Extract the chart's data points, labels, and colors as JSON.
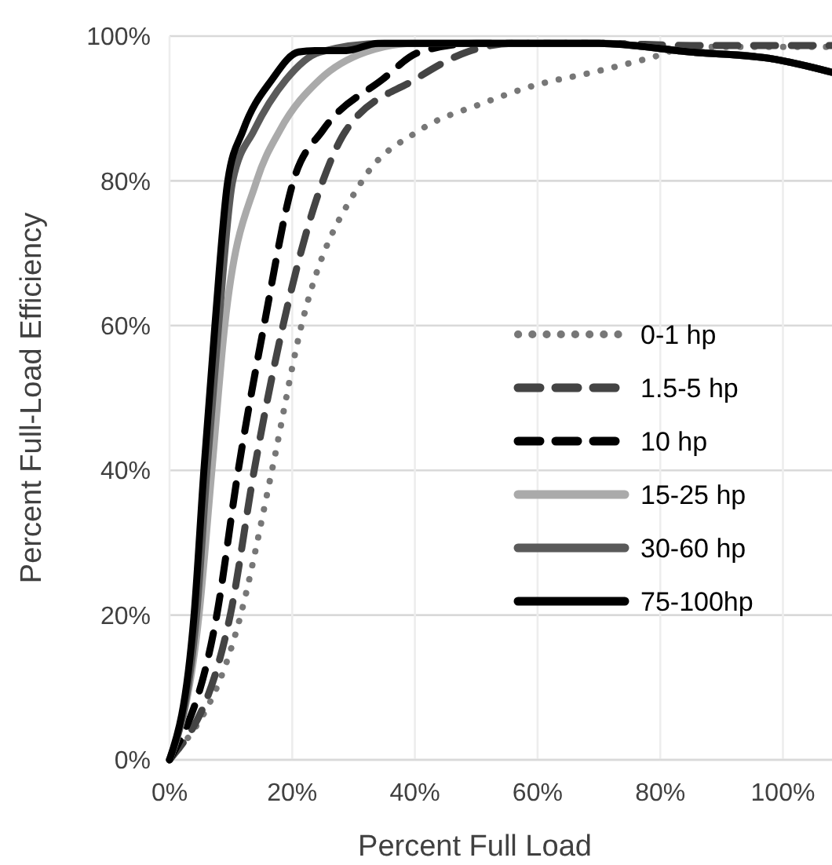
{
  "chart_data": {
    "type": "line",
    "xlabel": "Percent Full Load",
    "ylabel": "Percent Full-Load Efficiency",
    "xlim": [
      0,
      108
    ],
    "ylim": [
      0,
      100
    ],
    "xticks": [
      {
        "value": 0,
        "label": "0%"
      },
      {
        "value": 20,
        "label": "20%"
      },
      {
        "value": 40,
        "label": "40%"
      },
      {
        "value": 60,
        "label": "60%"
      },
      {
        "value": 80,
        "label": "80%"
      },
      {
        "value": 100,
        "label": "100%"
      }
    ],
    "yticks": [
      {
        "value": 0,
        "label": "0%"
      },
      {
        "value": 20,
        "label": "20%"
      },
      {
        "value": 40,
        "label": "40%"
      },
      {
        "value": 60,
        "label": "60%"
      },
      {
        "value": 80,
        "label": "80%"
      },
      {
        "value": 100,
        "label": "100%"
      }
    ],
    "grid": true,
    "legend": "right",
    "series": [
      {
        "name": "0-1 hp",
        "color": "#777777",
        "line_style": "dotted",
        "x": [
          0,
          11.6,
          16.7,
          21.5,
          31.4,
          40.8,
          51,
          60,
          69,
          78.4,
          85,
          95,
          108
        ],
        "values": [
          0,
          20,
          40,
          60,
          80,
          87,
          90.7,
          93.3,
          95,
          97,
          98.5,
          98.5,
          98.5
        ]
      },
      {
        "name": "1.5-5 hp",
        "color": "#444444",
        "line_style": "dashed",
        "x": [
          0,
          9.9,
          13.8,
          18.5,
          25,
          28.8,
          40,
          48.5,
          56,
          70,
          85,
          108
        ],
        "values": [
          0,
          20,
          40,
          60,
          80,
          87,
          94,
          97.8,
          99,
          99,
          98.7,
          98.7
        ]
      },
      {
        "name": "10 hp",
        "color": "#000000",
        "line_style": "dashed",
        "x": [
          0,
          7.7,
          11.2,
          15.4,
          20.2,
          25,
          34.7,
          40.8,
          50,
          70,
          85,
          98,
          108
        ],
        "values": [
          0,
          20,
          40,
          60,
          80,
          87,
          94,
          97.8,
          99,
          99,
          97.8,
          96.9,
          95
        ]
      },
      {
        "name": "15-25 hp",
        "color": "#aaaaaa",
        "line_style": "solid",
        "x": [
          0,
          4.8,
          6.9,
          9,
          14.2,
          18,
          24.5,
          32,
          40,
          70,
          85,
          98,
          108
        ],
        "values": [
          0,
          20,
          40,
          60,
          80,
          87,
          94,
          97.8,
          99,
          99,
          97.8,
          96.9,
          95
        ]
      },
      {
        "name": "30-60 hp",
        "color": "#5a5a5a",
        "line_style": "solid",
        "x": [
          0,
          4.4,
          6.1,
          8,
          10.3,
          13.8,
          19,
          24.5,
          35,
          70,
          85,
          98,
          108
        ],
        "values": [
          0,
          20,
          40,
          60,
          80,
          87,
          94,
          97.8,
          99,
          99,
          97.8,
          96.9,
          95
        ]
      },
      {
        "name": "75-100hp",
        "color": "#000000",
        "line_style": "solid",
        "x": [
          0,
          4,
          5.6,
          7.4,
          9.5,
          12,
          16.7,
          21,
          23.7,
          28.8,
          34,
          70,
          85,
          98,
          108
        ],
        "values": [
          0,
          20,
          40,
          60,
          80,
          87,
          94,
          97.8,
          98,
          98,
          99,
          99,
          97.8,
          96.9,
          95
        ]
      }
    ]
  }
}
